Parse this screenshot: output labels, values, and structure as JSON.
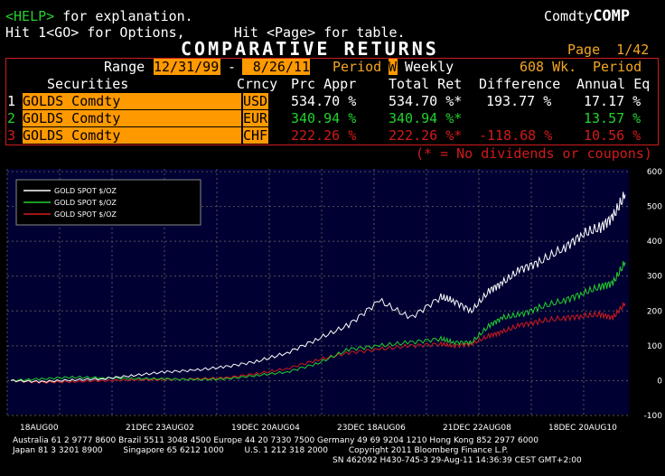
{
  "header": {
    "help_line": "<HELP> for explanation.",
    "help_key": "<HELP>",
    "help_rest": " for explanation.",
    "options_line": "Hit 1<GO> for Options,      Hit <Page> for table.",
    "brand_prefix": "Comdty",
    "brand_name": "COMP",
    "title": "COMPARATIVE  RETURNS",
    "page": "Page  1/42"
  },
  "range": {
    "label": "Range",
    "start": "12/31/99",
    "dash": "-",
    "end": "8/26/11",
    "period_label": "Period",
    "period_code": "W",
    "period_name": "Weekly",
    "weeks": "608 Wk.",
    "period2": "Period"
  },
  "columns": {
    "securities": "Securities",
    "crncy": "Crncy",
    "prc_appr": "Prc Appr",
    "total_ret": "Total Ret",
    "difference": "Difference",
    "annual_eq": "Annual Eq"
  },
  "rows": [
    {
      "num": "1",
      "security": "GOLDS Comdty",
      "crncy": "USD",
      "prc_appr": "534.70 %",
      "total_ret": "534.70 %*",
      "difference": "193.77 %",
      "annual": "17.17 %",
      "color": "#ffffff"
    },
    {
      "num": "2",
      "security": "GOLDS Comdty",
      "crncy": "EUR",
      "prc_appr": "340.94 %",
      "total_ret": "340.94 %*",
      "difference": "",
      "annual": "13.57 %",
      "color": "#22d12e"
    },
    {
      "num": "3",
      "security": "GOLDS Comdty",
      "crncy": "CHF",
      "prc_appr": "222.26 %",
      "total_ret": "222.26 %*",
      "difference": "-118.68 %",
      "annual": "10.56 %",
      "color": "#d11b1b"
    }
  ],
  "footnote": "(* = No dividends or coupons)",
  "chart_data": {
    "type": "line",
    "x_ticks": [
      "18AUG00",
      "21DEC 23AUG02",
      "19DEC 20AUG04",
      "23DEC 18AUG06",
      "21DEC 22AUG08",
      "18DEC 20AUG10"
    ],
    "y_ticks": [
      600,
      500,
      400,
      300,
      200,
      100,
      0,
      -100
    ],
    "ylim": [
      -100,
      600
    ],
    "legend": [
      "GOLD SPOT $/OZ",
      "GOLD SPOT $/OZ",
      "GOLD SPOT $/OZ"
    ],
    "series": [
      {
        "name": "GOLD SPOT $/OZ",
        "color": "#ffffff",
        "x": [
          0,
          0.05,
          0.1,
          0.15,
          0.2,
          0.25,
          0.3,
          0.35,
          0.4,
          0.45,
          0.5,
          0.55,
          0.6,
          0.65,
          0.7,
          0.72,
          0.75,
          0.78,
          0.8,
          0.83,
          0.86,
          0.9,
          0.93,
          0.96,
          0.98,
          1.0
        ],
        "values": [
          0,
          -3,
          2,
          5,
          15,
          25,
          30,
          40,
          55,
          80,
          120,
          160,
          230,
          180,
          240,
          230,
          200,
          260,
          280,
          320,
          340,
          380,
          420,
          440,
          470,
          534
        ]
      },
      {
        "name": "GOLD SPOT $/OZ",
        "color": "#22d12e",
        "x": [
          0,
          0.05,
          0.1,
          0.15,
          0.2,
          0.25,
          0.3,
          0.35,
          0.4,
          0.45,
          0.5,
          0.55,
          0.6,
          0.65,
          0.7,
          0.72,
          0.75,
          0.78,
          0.8,
          0.83,
          0.86,
          0.9,
          0.93,
          0.96,
          0.98,
          1.0
        ],
        "values": [
          0,
          5,
          10,
          8,
          6,
          5,
          3,
          5,
          15,
          25,
          50,
          90,
          100,
          110,
          120,
          110,
          110,
          160,
          180,
          190,
          210,
          230,
          250,
          270,
          280,
          340
        ]
      },
      {
        "name": "GOLD SPOT $/OZ",
        "color": "#d11b1b",
        "x": [
          0,
          0.05,
          0.1,
          0.15,
          0.2,
          0.25,
          0.3,
          0.35,
          0.4,
          0.45,
          0.5,
          0.55,
          0.6,
          0.65,
          0.7,
          0.72,
          0.75,
          0.78,
          0.8,
          0.83,
          0.86,
          0.9,
          0.93,
          0.96,
          0.98,
          1.0
        ],
        "values": [
          0,
          -5,
          -3,
          0,
          2,
          3,
          5,
          8,
          20,
          35,
          60,
          80,
          90,
          100,
          105,
          100,
          105,
          130,
          140,
          160,
          170,
          180,
          185,
          190,
          180,
          222
        ]
      }
    ]
  },
  "footer": {
    "line1": "Australia 61 2 9777 8600 Brazil 5511 3048 4500 Europe 44 20 7330 7500 Germany 49 69 9204 1210 Hong Kong 852 2977 6000",
    "line2": "Japan 81 3 3201 8900        Singapore 65 6212 1000        U.S. 1 212 318 2000        Copyright 2011 Bloomberg Finance L.P.",
    "line3": "SN 462092 H430-745-3 29-Aug-11 14:36:39 CEST GMT+2:00"
  }
}
